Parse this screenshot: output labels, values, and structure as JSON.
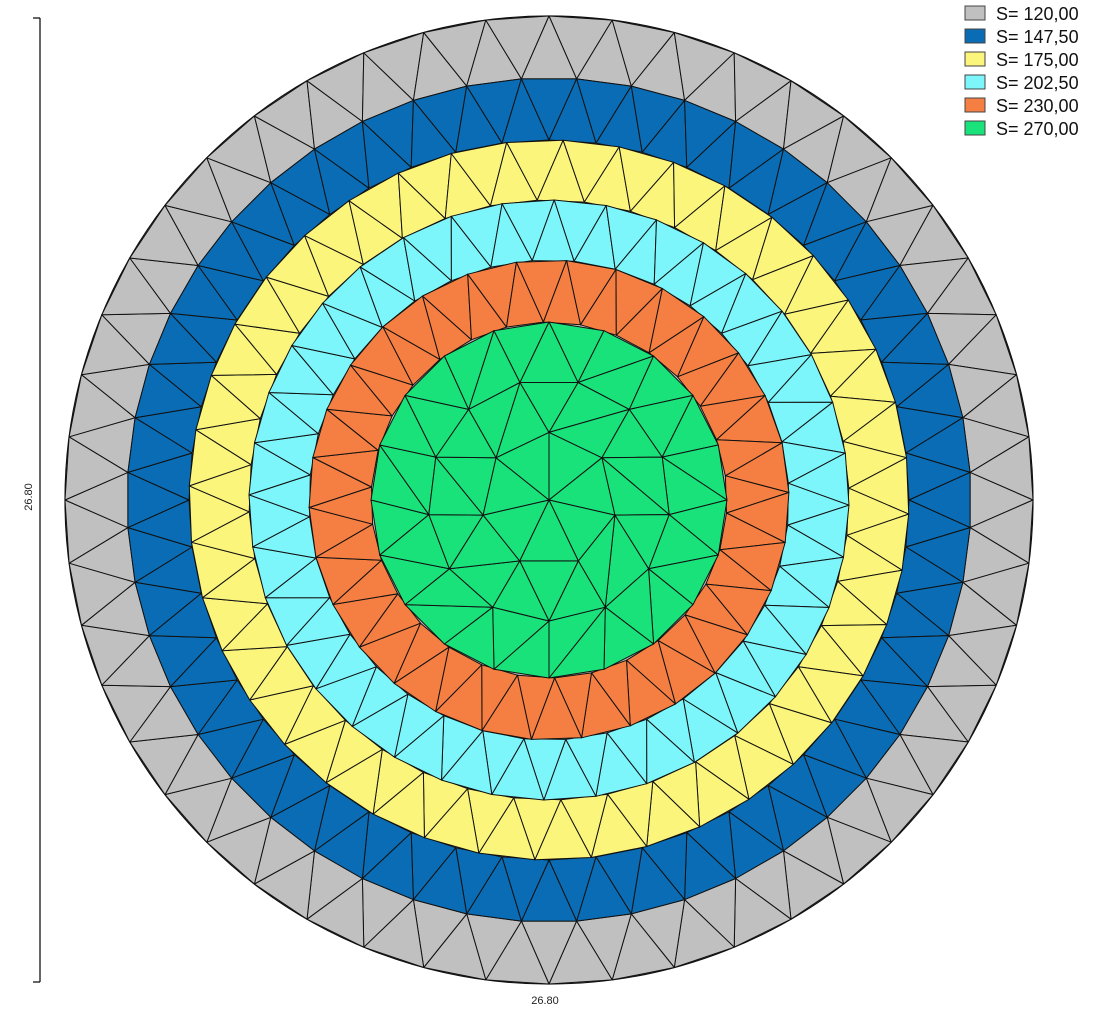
{
  "legend": {
    "placement": "top-right",
    "items": [
      {
        "label": "S= 120,00",
        "color": "#c0c0c0"
      },
      {
        "label": "S= 147,50",
        "color": "#0a6cb4"
      },
      {
        "label": "S= 175,00",
        "color": "#fbf57c"
      },
      {
        "label": "S= 202,50",
        "color": "#7df6fb"
      },
      {
        "label": "S= 230,00",
        "color": "#f57f42"
      },
      {
        "label": "S= 270,00",
        "color": "#19e27a"
      }
    ]
  },
  "dimensions": {
    "height_label": "26.80",
    "width_label": "26.80"
  },
  "mesh": {
    "ring_segments": [
      48,
      48,
      40,
      36,
      30
    ],
    "core_rings": [
      20,
      13,
      7,
      1
    ]
  }
}
